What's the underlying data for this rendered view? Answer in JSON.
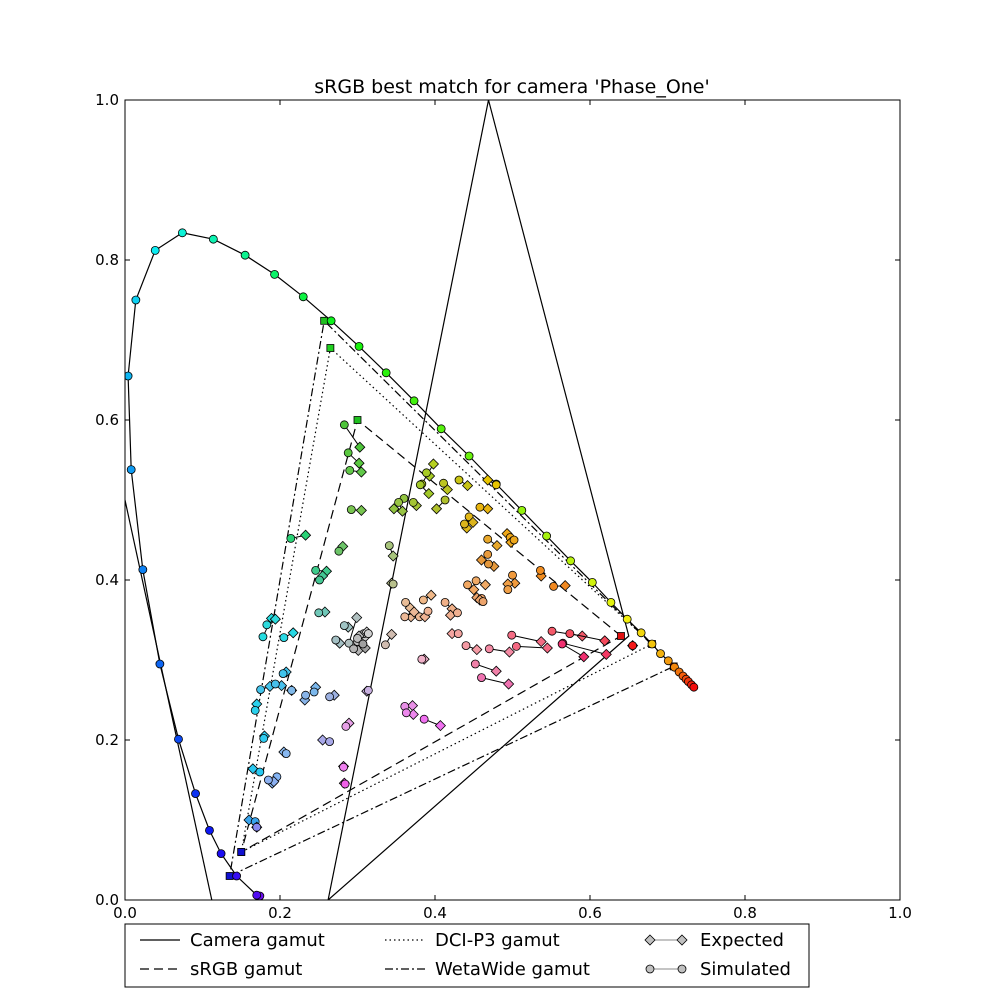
{
  "chart_data": {
    "type": "scatter",
    "title": "sRGB best match for camera 'Phase_One'",
    "xlabel": "",
    "ylabel": "",
    "xlim": [
      0,
      1
    ],
    "ylim": [
      0,
      1
    ],
    "xticks": [
      "0.0",
      "0.2",
      "0.4",
      "0.6",
      "0.8",
      "1.0"
    ],
    "yticks": [
      "0.0",
      "0.2",
      "0.4",
      "0.6",
      "0.8",
      "1.0"
    ],
    "grid": false,
    "legend_position": "below",
    "legend": [
      {
        "label": "Camera gamut",
        "style": "solid"
      },
      {
        "label": "DCI-P3 gamut",
        "style": "dotted"
      },
      {
        "label": "Expected",
        "style": "diamond"
      },
      {
        "label": "sRGB gamut",
        "style": "dashed"
      },
      {
        "label": "WetaWide gamut",
        "style": "dashdot"
      },
      {
        "label": "Simulated",
        "style": "circle"
      }
    ],
    "spectral_locus": [
      [
        0.174,
        0.005
      ],
      [
        0.17,
        0.006
      ],
      [
        0.144,
        0.03
      ],
      [
        0.124,
        0.058
      ],
      [
        0.109,
        0.087
      ],
      [
        0.091,
        0.133
      ],
      [
        0.069,
        0.201
      ],
      [
        0.045,
        0.295
      ],
      [
        0.023,
        0.413
      ],
      [
        0.008,
        0.538
      ],
      [
        0.004,
        0.655
      ],
      [
        0.014,
        0.75
      ],
      [
        0.039,
        0.812
      ],
      [
        0.074,
        0.834
      ],
      [
        0.114,
        0.826
      ],
      [
        0.155,
        0.806
      ],
      [
        0.193,
        0.782
      ],
      [
        0.23,
        0.754
      ],
      [
        0.266,
        0.724
      ],
      [
        0.302,
        0.692
      ],
      [
        0.337,
        0.659
      ],
      [
        0.373,
        0.624
      ],
      [
        0.408,
        0.589
      ],
      [
        0.444,
        0.555
      ],
      [
        0.479,
        0.52
      ],
      [
        0.512,
        0.487
      ],
      [
        0.544,
        0.455
      ],
      [
        0.575,
        0.424
      ],
      [
        0.603,
        0.397
      ],
      [
        0.627,
        0.372
      ],
      [
        0.648,
        0.351
      ],
      [
        0.666,
        0.334
      ],
      [
        0.68,
        0.32
      ],
      [
        0.691,
        0.308
      ],
      [
        0.701,
        0.299
      ],
      [
        0.709,
        0.291
      ],
      [
        0.715,
        0.285
      ],
      [
        0.72,
        0.28
      ],
      [
        0.724,
        0.276
      ],
      [
        0.727,
        0.273
      ],
      [
        0.731,
        0.269
      ],
      [
        0.734,
        0.266
      ]
    ],
    "camera_gamut": [
      [
        0.469,
        1.0
      ],
      [
        0.65,
        0.33
      ],
      [
        0.262,
        0.0
      ]
    ],
    "camera_blue_line": [
      [
        0.0,
        0.5
      ],
      [
        0.112,
        0.0
      ]
    ],
    "srgb_gamut": [
      [
        0.64,
        0.33
      ],
      [
        0.3,
        0.6
      ],
      [
        0.15,
        0.06
      ]
    ],
    "dcip3_gamut": [
      [
        0.68,
        0.32
      ],
      [
        0.265,
        0.69
      ],
      [
        0.15,
        0.06
      ]
    ],
    "wetawide_gamut": [
      [
        0.708,
        0.292
      ],
      [
        0.257,
        0.724
      ],
      [
        0.135,
        0.03
      ]
    ],
    "pairs": [
      {
        "sim": [
          0.283,
          0.594
        ],
        "exp": [
          0.303,
          0.566
        ],
        "color": "#4ec43a"
      },
      {
        "sim": [
          0.288,
          0.559
        ],
        "exp": [
          0.302,
          0.546
        ],
        "color": "#5ac840"
      },
      {
        "sim": [
          0.29,
          0.537
        ],
        "exp": [
          0.305,
          0.535
        ],
        "color": "#62c84a"
      },
      {
        "sim": [
          0.292,
          0.488
        ],
        "exp": [
          0.305,
          0.487
        ],
        "color": "#78c450"
      },
      {
        "sim": [
          0.214,
          0.452
        ],
        "exp": [
          0.233,
          0.456
        ],
        "color": "#2ad276"
      },
      {
        "sim": [
          0.276,
          0.436
        ],
        "exp": [
          0.281,
          0.442
        ],
        "color": "#6cc468"
      },
      {
        "sim": [
          0.246,
          0.412
        ],
        "exp": [
          0.26,
          0.411
        ],
        "color": "#3ecb8c"
      },
      {
        "sim": [
          0.251,
          0.4
        ],
        "exp": [
          0.255,
          0.405
        ],
        "color": "#44c894"
      },
      {
        "sim": [
          0.383,
          0.52
        ],
        "exp": [
          0.398,
          0.545
        ],
        "color": "#b6d020"
      },
      {
        "sim": [
          0.389,
          0.534
        ],
        "exp": [
          0.393,
          0.53
        ],
        "color": "#a8cc26"
      },
      {
        "sim": [
          0.381,
          0.519
        ],
        "exp": [
          0.392,
          0.508
        ],
        "color": "#a2c828"
      },
      {
        "sim": [
          0.36,
          0.502
        ],
        "exp": [
          0.347,
          0.489
        ],
        "color": "#92c440"
      },
      {
        "sim": [
          0.353,
          0.497
        ],
        "exp": [
          0.358,
          0.486
        ],
        "color": "#98c444"
      },
      {
        "sim": [
          0.372,
          0.497
        ],
        "exp": [
          0.376,
          0.493
        ],
        "color": "#a4c434"
      },
      {
        "sim": [
          0.413,
          0.5
        ],
        "exp": [
          0.402,
          0.489
        ],
        "color": "#b0c02c"
      },
      {
        "sim": [
          0.431,
          0.525
        ],
        "exp": [
          0.442,
          0.518
        ],
        "color": "#c8c414"
      },
      {
        "sim": [
          0.411,
          0.521
        ],
        "exp": [
          0.416,
          0.513
        ],
        "color": "#bcc420"
      },
      {
        "sim": [
          0.444,
          0.479
        ],
        "exp": [
          0.441,
          0.465
        ],
        "color": "#e2b818"
      },
      {
        "sim": [
          0.438,
          0.47
        ],
        "exp": [
          0.449,
          0.472
        ],
        "color": "#dcb41c"
      },
      {
        "sim": [
          0.458,
          0.491
        ],
        "exp": [
          0.468,
          0.489
        ],
        "color": "#e8b410"
      },
      {
        "sim": [
          0.479,
          0.519
        ],
        "exp": [
          0.468,
          0.525
        ],
        "color": "#e8c400"
      },
      {
        "sim": [
          0.497,
          0.453
        ],
        "exp": [
          0.493,
          0.458
        ],
        "color": "#f0a818"
      },
      {
        "sim": [
          0.502,
          0.45
        ],
        "exp": [
          0.498,
          0.447
        ],
        "color": "#eea81c"
      },
      {
        "sim": [
          0.468,
          0.451
        ],
        "exp": [
          0.48,
          0.443
        ],
        "color": "#e8a82c"
      },
      {
        "sim": [
          0.468,
          0.432
        ],
        "exp": [
          0.46,
          0.425
        ],
        "color": "#e89a3c"
      },
      {
        "sim": [
          0.469,
          0.42
        ],
        "exp": [
          0.476,
          0.417
        ],
        "color": "#e4983c"
      },
      {
        "sim": [
          0.536,
          0.412
        ],
        "exp": [
          0.537,
          0.405
        ],
        "color": "#f08c20"
      },
      {
        "sim": [
          0.553,
          0.392
        ],
        "exp": [
          0.568,
          0.393
        ],
        "color": "#f08820"
      },
      {
        "sim": [
          0.5,
          0.406
        ],
        "exp": [
          0.503,
          0.396
        ],
        "color": "#f09a3c"
      },
      {
        "sim": [
          0.494,
          0.388
        ],
        "exp": [
          0.494,
          0.395
        ],
        "color": "#f0a048"
      },
      {
        "sim": [
          0.442,
          0.394
        ],
        "exp": [
          0.45,
          0.388
        ],
        "color": "#f2a862"
      },
      {
        "sim": [
          0.453,
          0.399
        ],
        "exp": [
          0.465,
          0.394
        ],
        "color": "#f0aa66"
      },
      {
        "sim": [
          0.46,
          0.377
        ],
        "exp": [
          0.454,
          0.378
        ],
        "color": "#eca26a"
      },
      {
        "sim": [
          0.462,
          0.373
        ],
        "exp": [
          0.458,
          0.375
        ],
        "color": "#eca46c"
      },
      {
        "sim": [
          0.385,
          0.375
        ],
        "exp": [
          0.395,
          0.381
        ],
        "color": "#f0b888"
      },
      {
        "sim": [
          0.413,
          0.372
        ],
        "exp": [
          0.422,
          0.364
        ],
        "color": "#f0b088"
      },
      {
        "sim": [
          0.429,
          0.359
        ],
        "exp": [
          0.42,
          0.356
        ],
        "color": "#f0b090"
      },
      {
        "sim": [
          0.362,
          0.372
        ],
        "exp": [
          0.368,
          0.365
        ],
        "color": "#e8bc96"
      },
      {
        "sim": [
          0.38,
          0.354
        ],
        "exp": [
          0.369,
          0.354
        ],
        "color": "#ecb894"
      },
      {
        "sim": [
          0.361,
          0.354
        ],
        "exp": [
          0.373,
          0.36
        ],
        "color": "#ecb896"
      },
      {
        "sim": [
          0.391,
          0.361
        ],
        "exp": [
          0.387,
          0.354
        ],
        "color": "#f0b494"
      },
      {
        "sim": [
          0.346,
          0.395
        ],
        "exp": [
          0.344,
          0.396
        ],
        "color": "#b8c08c"
      },
      {
        "sim": [
          0.341,
          0.443
        ],
        "exp": [
          0.346,
          0.43
        ],
        "color": "#a8c47c"
      },
      {
        "sim": [
          0.43,
          0.333
        ],
        "exp": [
          0.422,
          0.333
        ],
        "color": "#f4a4a0"
      },
      {
        "sim": [
          0.44,
          0.318
        ],
        "exp": [
          0.454,
          0.313
        ],
        "color": "#f49aa4"
      },
      {
        "sim": [
          0.47,
          0.314
        ],
        "exp": [
          0.496,
          0.31
        ],
        "color": "#f48aa4"
      },
      {
        "sim": [
          0.452,
          0.295
        ],
        "exp": [
          0.479,
          0.286
        ],
        "color": "#f080a8"
      },
      {
        "sim": [
          0.46,
          0.278
        ],
        "exp": [
          0.495,
          0.27
        ],
        "color": "#ee72b0"
      },
      {
        "sim": [
          0.499,
          0.331
        ],
        "exp": [
          0.537,
          0.323
        ],
        "color": "#f46c84"
      },
      {
        "sim": [
          0.505,
          0.317
        ],
        "exp": [
          0.545,
          0.315
        ],
        "color": "#f46882"
      },
      {
        "sim": [
          0.551,
          0.336
        ],
        "exp": [
          0.59,
          0.33
        ],
        "color": "#f45a6a"
      },
      {
        "sim": [
          0.574,
          0.333
        ],
        "exp": [
          0.619,
          0.324
        ],
        "color": "#f44a5c"
      },
      {
        "sim": [
          0.565,
          0.321
        ],
        "exp": [
          0.621,
          0.307
        ],
        "color": "#f43a64"
      },
      {
        "sim": [
          0.564,
          0.32
        ],
        "exp": [
          0.592,
          0.304
        ],
        "color": "#f03070"
      },
      {
        "sim": [
          0.655,
          0.318
        ],
        "exp": [
          0.655,
          0.318
        ],
        "color": "#f41818"
      },
      {
        "sim": [
          0.383,
          0.301
        ],
        "exp": [
          0.386,
          0.301
        ],
        "color": "#f0b0c8"
      },
      {
        "sim": [
          0.361,
          0.242
        ],
        "exp": [
          0.371,
          0.243
        ],
        "color": "#e890e6"
      },
      {
        "sim": [
          0.363,
          0.234
        ],
        "exp": [
          0.372,
          0.232
        ],
        "color": "#ec88ec"
      },
      {
        "sim": [
          0.386,
          0.226
        ],
        "exp": [
          0.407,
          0.218
        ],
        "color": "#f070f0"
      },
      {
        "sim": [
          0.285,
          0.217
        ],
        "exp": [
          0.289,
          0.221
        ],
        "color": "#e8a0e8"
      },
      {
        "sim": [
          0.282,
          0.166
        ],
        "exp": [
          0.282,
          0.167
        ],
        "color": "#f080f0"
      },
      {
        "sim": [
          0.284,
          0.145
        ],
        "exp": [
          0.283,
          0.146
        ],
        "color": "#f060e8"
      },
      {
        "sim": [
          0.314,
          0.262
        ],
        "exp": [
          0.312,
          0.261
        ],
        "color": "#c8b0e0"
      },
      {
        "sim": [
          0.264,
          0.198
        ],
        "exp": [
          0.255,
          0.2
        ],
        "color": "#a8a8e8"
      },
      {
        "sim": [
          0.208,
          0.183
        ],
        "exp": [
          0.205,
          0.185
        ],
        "color": "#88b8f0"
      },
      {
        "sim": [
          0.196,
          0.154
        ],
        "exp": [
          0.19,
          0.146
        ],
        "color": "#84b4f4"
      },
      {
        "sim": [
          0.185,
          0.15
        ],
        "exp": [
          0.192,
          0.148
        ],
        "color": "#8cb0f0"
      },
      {
        "sim": [
          0.168,
          0.098
        ],
        "exp": [
          0.16,
          0.1
        ],
        "color": "#3aa4ec"
      },
      {
        "sim": [
          0.17,
          0.091
        ],
        "exp": [
          0.17,
          0.091
        ],
        "color": "#8888f0"
      },
      {
        "sim": [
          0.174,
          0.16
        ],
        "exp": [
          0.165,
          0.164
        ],
        "color": "#28c8f0"
      },
      {
        "sim": [
          0.179,
          0.202
        ],
        "exp": [
          0.18,
          0.205
        ],
        "color": "#30ccf0"
      },
      {
        "sim": [
          0.168,
          0.237
        ],
        "exp": [
          0.17,
          0.245
        ],
        "color": "#2ad0ec"
      },
      {
        "sim": [
          0.175,
          0.263
        ],
        "exp": [
          0.187,
          0.267
        ],
        "color": "#44c4ec"
      },
      {
        "sim": [
          0.194,
          0.27
        ],
        "exp": [
          0.202,
          0.268
        ],
        "color": "#48c0ec"
      },
      {
        "sim": [
          0.204,
          0.283
        ],
        "exp": [
          0.208,
          0.285
        ],
        "color": "#40c4ec"
      },
      {
        "sim": [
          0.205,
          0.328
        ],
        "exp": [
          0.217,
          0.334
        ],
        "color": "#28d8e4"
      },
      {
        "sim": [
          0.178,
          0.329
        ],
        "exp": [
          0.189,
          0.352
        ],
        "color": "#24dce0"
      },
      {
        "sim": [
          0.183,
          0.344
        ],
        "exp": [
          0.194,
          0.351
        ],
        "color": "#2edadc"
      },
      {
        "sim": [
          0.215,
          0.262
        ],
        "exp": [
          0.215,
          0.262
        ],
        "color": "#80b8e8"
      },
      {
        "sim": [
          0.233,
          0.256
        ],
        "exp": [
          0.232,
          0.25
        ],
        "color": "#88b4e8"
      },
      {
        "sim": [
          0.244,
          0.26
        ],
        "exp": [
          0.246,
          0.266
        ],
        "color": "#7cb8ec"
      },
      {
        "sim": [
          0.264,
          0.254
        ],
        "exp": [
          0.27,
          0.256
        ],
        "color": "#9cb0e0"
      },
      {
        "sim": [
          0.25,
          0.359
        ],
        "exp": [
          0.258,
          0.36
        ],
        "color": "#70c8b8"
      },
      {
        "sim": [
          0.272,
          0.325
        ],
        "exp": [
          0.277,
          0.321
        ],
        "color": "#a4c0c4"
      },
      {
        "sim": [
          0.283,
          0.343
        ],
        "exp": [
          0.288,
          0.341
        ],
        "color": "#a0c4c4"
      },
      {
        "sim": [
          0.289,
          0.321
        ],
        "exp": [
          0.299,
          0.353
        ],
        "color": "#b0c0c0"
      },
      {
        "sim": [
          0.3,
          0.323
        ],
        "exp": [
          0.305,
          0.317
        ],
        "color": "#c0c0c0"
      },
      {
        "sim": [
          0.308,
          0.333
        ],
        "exp": [
          0.31,
          0.329
        ],
        "color": "#c8c8c8"
      },
      {
        "sim": [
          0.314,
          0.333
        ],
        "exp": [
          0.312,
          0.335
        ],
        "color": "#d0d0d0"
      },
      {
        "sim": [
          0.3,
          0.327
        ],
        "exp": [
          0.302,
          0.33
        ],
        "color": "#bcbcbc"
      },
      {
        "sim": [
          0.295,
          0.314
        ],
        "exp": [
          0.301,
          0.312
        ],
        "color": "#b4b4b4"
      },
      {
        "sim": [
          0.307,
          0.32
        ],
        "exp": [
          0.31,
          0.315
        ],
        "color": "#a0a0a0"
      },
      {
        "sim": [
          0.336,
          0.319
        ],
        "exp": [
          0.344,
          0.332
        ],
        "color": "#d0bcb0"
      }
    ]
  }
}
